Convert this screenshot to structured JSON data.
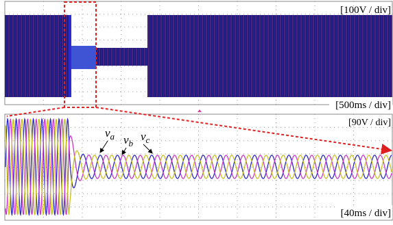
{
  "top_panel": {
    "scale_label": "[100V / div]",
    "time_label": "[500ms / div]"
  },
  "bottom_panel": {
    "scale_label": "[90V / div]",
    "time_label": "[40ms / div]",
    "phases": [
      {
        "symbol": "v",
        "subscript": "a"
      },
      {
        "symbol": "v",
        "subscript": "b"
      },
      {
        "symbol": "v",
        "subscript": "c"
      }
    ]
  }
}
